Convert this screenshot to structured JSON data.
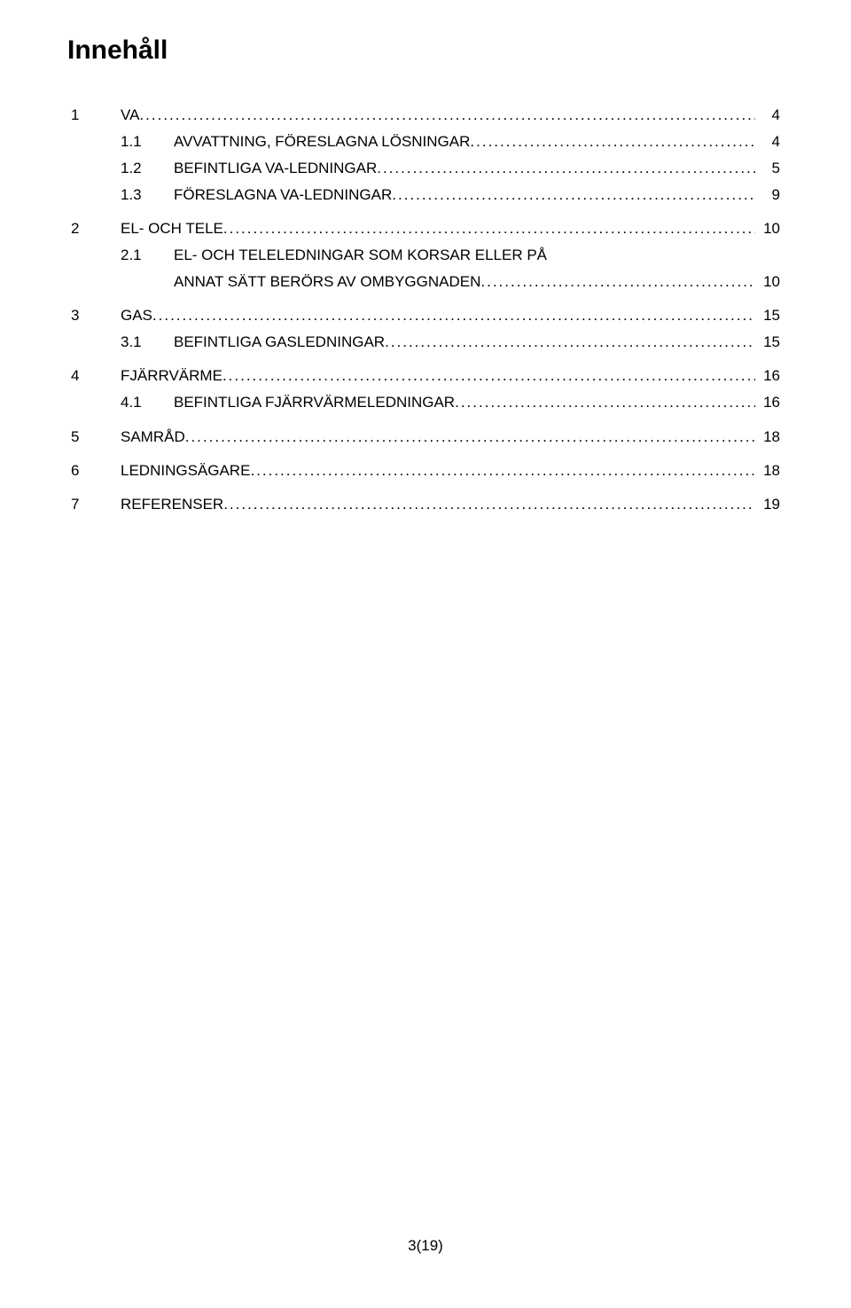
{
  "title": "Innehåll",
  "leader_fill": "..........................................................................................................................................................................................................................",
  "footer": "3(19)",
  "toc": [
    {
      "type": "top",
      "num": "1",
      "label": "VA",
      "page": "4"
    },
    {
      "type": "sub",
      "num": "1.1",
      "label": "AVVATTNING, FÖRESLAGNA LÖSNINGAR",
      "page": "4"
    },
    {
      "type": "sub",
      "num": "1.2",
      "label": "BEFINTLIGA VA-LEDNINGAR",
      "page": "5"
    },
    {
      "type": "sub",
      "num": "1.3",
      "label": "FÖRESLAGNA VA-LEDNINGAR",
      "page": "9"
    },
    {
      "type": "spacer"
    },
    {
      "type": "top",
      "num": "2",
      "label": "EL- OCH TELE",
      "page": "10"
    },
    {
      "type": "sub_noleader",
      "num": "2.1",
      "label": "EL- OCH TELELEDNINGAR SOM KORSAR ELLER PÅ"
    },
    {
      "type": "continuation",
      "label": "ANNAT SÄTT BERÖRS AV OMBYGGNADEN",
      "page": "10"
    },
    {
      "type": "spacer"
    },
    {
      "type": "top",
      "num": "3",
      "label": "GAS",
      "page": "15"
    },
    {
      "type": "sub",
      "num": "3.1",
      "label": "BEFINTLIGA GASLEDNINGAR",
      "page": "15"
    },
    {
      "type": "spacer"
    },
    {
      "type": "top",
      "num": "4",
      "label": "FJÄRRVÄRME",
      "page": "16"
    },
    {
      "type": "sub",
      "num": "4.1",
      "label": "BEFINTLIGA FJÄRRVÄRMELEDNINGAR",
      "page": "16"
    },
    {
      "type": "spacer"
    },
    {
      "type": "top",
      "num": "5",
      "label": "SAMRÅD",
      "page": "18"
    },
    {
      "type": "spacer"
    },
    {
      "type": "top",
      "num": "6",
      "label": "LEDNINGSÄGARE",
      "page": "18"
    },
    {
      "type": "spacer"
    },
    {
      "type": "top",
      "num": "7",
      "label": "REFERENSER",
      "page": "19"
    }
  ]
}
